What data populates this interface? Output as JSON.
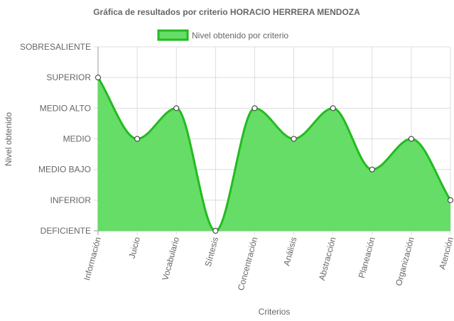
{
  "chart_data": {
    "type": "area",
    "title": "Gráfica de resultados por criterio HORACIO HERRERA MENDOZA",
    "xlabel": "Criterios",
    "ylabel": "Nivel obtenido",
    "legend": {
      "position": "top",
      "entries": [
        "Nivel obtenido por criterio"
      ]
    },
    "levels": [
      "DEFICIENTE",
      "INFERIOR",
      "MEDIO BAJO",
      "MEDIO",
      "MEDIO ALTO",
      "SUPERIOR",
      "SOBRESALIENTE"
    ],
    "ylim": [
      0,
      6
    ],
    "categories": [
      "Información",
      "Juicio",
      "Vocabulario",
      "Síntesis",
      "Concentración",
      "Análisis",
      "Abstracción",
      "Planeación",
      "Organización",
      "Atención"
    ],
    "series": [
      {
        "name": "Nivel obtenido por criterio",
        "values": [
          5,
          3,
          4,
          0,
          4,
          3,
          4,
          2,
          3,
          1
        ],
        "fill_color": "#66dd66",
        "line_color": "#22bb22"
      }
    ],
    "grid": true
  }
}
